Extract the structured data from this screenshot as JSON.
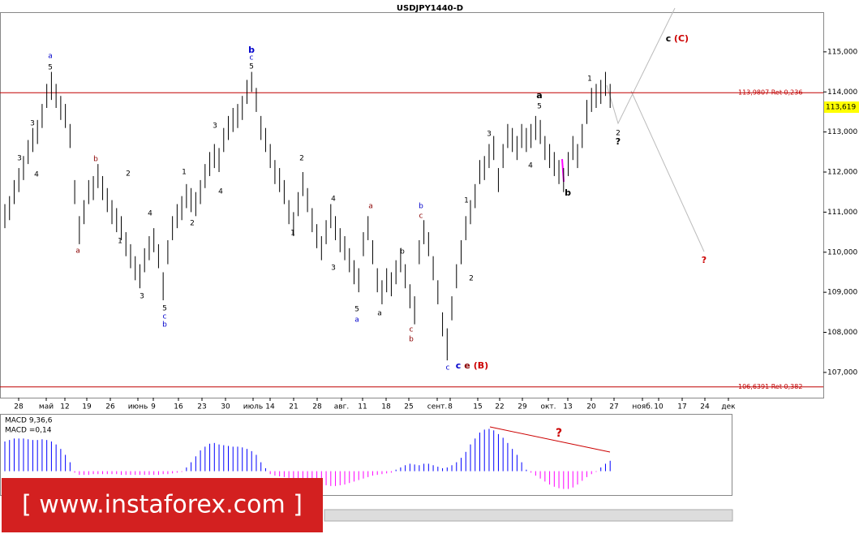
{
  "chart_data": {
    "type": "ohlc",
    "title": "USDJPY1440-D",
    "ylim": [
      106.37,
      115.99
    ],
    "yticks": [
      {
        "value": 107,
        "label": "107,000"
      },
      {
        "value": 108,
        "label": "108,000"
      },
      {
        "value": 109,
        "label": "109,000"
      },
      {
        "value": 110,
        "label": "110,000"
      },
      {
        "value": 111,
        "label": "111,000"
      },
      {
        "value": 112,
        "label": "112,000"
      },
      {
        "value": 113,
        "label": "113,000"
      },
      {
        "value": 114,
        "label": "114,000"
      },
      {
        "value": 115,
        "label": "115,000"
      }
    ],
    "x_labels": [
      "28",
      "май",
      "12",
      "19",
      "26",
      "июнь",
      "9",
      "16",
      "23",
      "30",
      "июль",
      "14",
      "21",
      "28",
      "авг.",
      "11",
      "18",
      "25",
      "сент.",
      "8",
      "15",
      "22",
      "29",
      "окт.",
      "13",
      "20",
      "27",
      "нояб.",
      "10",
      "17",
      "24",
      "дек"
    ],
    "bar_color": "#000000",
    "high": [
      111.2,
      111.4,
      111.8,
      112.1,
      112.4,
      112.8,
      113.1,
      113.3,
      113.7,
      114.2,
      114.5,
      114.2,
      113.9,
      113.7,
      113.2,
      111.8,
      110.9,
      111.3,
      111.8,
      111.9,
      112.2,
      111.9,
      111.6,
      111.3,
      111.1,
      110.9,
      110.5,
      110.2,
      109.9,
      109.7,
      110.1,
      110.4,
      110.6,
      110.2,
      109.5,
      110.3,
      110.9,
      111.2,
      111.4,
      111.7,
      111.6,
      111.5,
      111.8,
      112.2,
      112.5,
      112.7,
      112.6,
      113.1,
      113.4,
      113.6,
      113.7,
      113.9,
      114.3,
      114.5,
      114.1,
      113.4,
      113.1,
      112.7,
      112.3,
      112.1,
      111.8,
      111.3,
      111.0,
      111.5,
      112.0,
      111.6,
      111.1,
      110.7,
      110.4,
      110.8,
      111.2,
      110.9,
      110.6,
      110.4,
      110.1,
      109.8,
      109.6,
      110.5,
      110.9,
      110.3,
      109.6,
      109.3,
      109.6,
      109.5,
      109.8,
      110.1,
      109.7,
      109.2,
      108.9,
      110.3,
      110.8,
      110.5,
      109.9,
      109.3,
      108.5,
      108.1,
      108.9,
      109.7,
      110.3,
      110.9,
      111.3,
      111.7,
      112.3,
      112.4,
      112.7,
      112.9,
      112.1,
      112.7,
      113.2,
      113.1,
      112.9,
      113.2,
      113.1,
      113.2,
      113.4,
      113.3,
      112.9,
      112.7,
      112.5,
      112.3,
      112.1,
      112.5,
      112.9,
      112.7,
      113.2,
      113.8,
      114.1,
      114.2,
      114.3,
      114.5,
      114.2
    ],
    "low": [
      110.6,
      110.8,
      111.2,
      111.5,
      111.8,
      112.2,
      112.5,
      112.7,
      113.1,
      113.6,
      113.8,
      113.6,
      113.3,
      113.1,
      112.6,
      111.2,
      110.2,
      110.7,
      111.2,
      111.3,
      111.6,
      111.3,
      111.0,
      110.7,
      110.5,
      110.3,
      109.9,
      109.6,
      109.3,
      109.1,
      109.5,
      109.8,
      110.0,
      109.6,
      108.8,
      109.7,
      110.3,
      110.6,
      110.8,
      111.1,
      111.0,
      110.9,
      111.2,
      111.6,
      111.9,
      112.1,
      112.0,
      112.5,
      112.8,
      113.0,
      113.1,
      113.3,
      113.7,
      114.0,
      113.5,
      112.8,
      112.5,
      112.1,
      111.7,
      111.5,
      111.2,
      110.7,
      110.4,
      110.9,
      111.4,
      111.0,
      110.5,
      110.1,
      109.8,
      110.2,
      110.6,
      110.3,
      110.0,
      109.8,
      109.5,
      109.2,
      109.0,
      109.9,
      110.3,
      109.7,
      109.0,
      108.7,
      109.0,
      108.9,
      109.2,
      109.5,
      109.1,
      108.6,
      108.2,
      109.7,
      110.2,
      109.9,
      109.3,
      108.7,
      107.9,
      107.3,
      108.3,
      109.1,
      109.7,
      110.3,
      110.7,
      111.1,
      111.7,
      111.8,
      112.1,
      112.3,
      111.5,
      112.1,
      112.6,
      112.5,
      112.3,
      112.6,
      112.5,
      112.6,
      112.8,
      112.7,
      112.3,
      112.1,
      111.9,
      111.7,
      111.5,
      111.9,
      112.3,
      112.1,
      112.6,
      113.2,
      113.5,
      113.6,
      113.7,
      113.9,
      113.6
    ],
    "levels": [
      {
        "value": 113.9807,
        "label": "113,9807 Ret 0,236",
        "color": "#c00000"
      },
      {
        "value": 106.6391,
        "label": "106,6391 Ret 0,382",
        "color": "#c00000"
      }
    ],
    "current_price": {
      "value": 113.619,
      "label": "113,619",
      "color": "#ffff00"
    },
    "annotations": [
      {
        "text": "a",
        "color": "#0000cc"
      },
      {
        "text": "5",
        "color": "#000000"
      },
      {
        "text": "3",
        "color": "#000000"
      },
      {
        "text": "4",
        "color": "#000000"
      },
      {
        "text": "3",
        "color": "#000000"
      },
      {
        "text": "a",
        "color": "#8b0000"
      },
      {
        "text": "b",
        "color": "#8b0000"
      },
      {
        "text": "2",
        "color": "#000000"
      },
      {
        "text": "1",
        "color": "#000000"
      },
      {
        "text": "4",
        "color": "#000000"
      },
      {
        "text": "3",
        "color": "#000000"
      },
      {
        "text": "1",
        "color": "#000000"
      },
      {
        "text": "2",
        "color": "#000000"
      },
      {
        "text": "4",
        "color": "#000000"
      },
      {
        "text": "3",
        "color": "#000000"
      },
      {
        "text": "5",
        "color": "#000000"
      },
      {
        "text": "c",
        "color": "#0000cc"
      },
      {
        "text": "b",
        "color": "#0000cc"
      },
      {
        "text": "b",
        "color": "#0000cc",
        "bold": true
      },
      {
        "text": "c",
        "color": "#0000cc"
      },
      {
        "text": "5",
        "color": "#000000"
      },
      {
        "text": "2",
        "color": "#000000"
      },
      {
        "text": "1",
        "color": "#000000"
      },
      {
        "text": "4",
        "color": "#000000"
      },
      {
        "text": "3",
        "color": "#000000"
      },
      {
        "text": "a",
        "color": "#8b0000"
      },
      {
        "text": "5",
        "color": "#000000"
      },
      {
        "text": "a",
        "color": "#0000cc"
      },
      {
        "text": "a",
        "color": "#000000"
      },
      {
        "text": "b",
        "color": "#000000"
      },
      {
        "text": "c",
        "color": "#8b0000"
      },
      {
        "text": "b",
        "color": "#8b0000"
      },
      {
        "text": "b",
        "color": "#0000cc"
      },
      {
        "text": "c",
        "color": "#8b0000"
      },
      {
        "text": "1",
        "color": "#000000"
      },
      {
        "text": "2",
        "color": "#000000"
      },
      {
        "text": "3",
        "color": "#000000"
      },
      {
        "text": "4",
        "color": "#000000"
      },
      {
        "text": "a",
        "color": "#000000",
        "bold": true
      },
      {
        "text": "5",
        "color": "#000000"
      },
      {
        "text": "b",
        "color": "#000000",
        "bold": true
      },
      {
        "text": "1",
        "color": "#000000"
      },
      {
        "text": "2",
        "color": "#000000"
      },
      {
        "text": "?",
        "color": "#000000",
        "bold": true
      },
      {
        "text": "c",
        "color": "#0000cc"
      },
      {
        "text": "c",
        "color": "#0000cc",
        "bold": true
      },
      {
        "text": "e",
        "color": "#8b0000",
        "bold": true
      },
      {
        "text": "(B)",
        "color": "#cc0000",
        "bold": true
      },
      {
        "text": "c",
        "color": "#000000",
        "bold": true
      },
      {
        "text": "(C)",
        "color": "#cc0000",
        "bold": true
      },
      {
        "text": "?",
        "color": "#cc0000",
        "bold": true
      },
      {
        "text": "?",
        "color": "#cc0000",
        "bold": true
      }
    ],
    "macd": {
      "label": "MACD 9,36,6",
      "value_label": "MACD =0,14",
      "ylim": [
        -0.3,
        0.75
      ],
      "pos_color": "#0000ff",
      "neg_color": "#ff00ff",
      "values": [
        0.4,
        0.42,
        0.44,
        0.44,
        0.44,
        0.43,
        0.42,
        0.42,
        0.43,
        0.42,
        0.4,
        0.36,
        0.3,
        0.22,
        0.12,
        -0.02,
        -0.05,
        -0.05,
        -0.05,
        -0.04,
        -0.04,
        -0.04,
        -0.04,
        -0.04,
        -0.04,
        -0.05,
        -0.05,
        -0.05,
        -0.05,
        -0.05,
        -0.05,
        -0.05,
        -0.05,
        -0.05,
        -0.04,
        -0.04,
        -0.03,
        -0.02,
        -0.01,
        0.05,
        0.12,
        0.2,
        0.28,
        0.33,
        0.37,
        0.38,
        0.36,
        0.35,
        0.34,
        0.33,
        0.33,
        0.32,
        0.3,
        0.27,
        0.22,
        0.12,
        0.04,
        -0.04,
        -0.06,
        -0.07,
        -0.08,
        -0.09,
        -0.1,
        -0.1,
        -0.11,
        -0.12,
        -0.14,
        -0.16,
        -0.18,
        -0.19,
        -0.2,
        -0.2,
        -0.19,
        -0.18,
        -0.16,
        -0.14,
        -0.12,
        -0.1,
        -0.08,
        -0.06,
        -0.05,
        -0.04,
        -0.03,
        -0.02,
        0.02,
        0.05,
        0.08,
        0.1,
        0.09,
        0.08,
        0.1,
        0.1,
        0.08,
        0.06,
        0.04,
        0.05,
        0.08,
        0.12,
        0.18,
        0.26,
        0.36,
        0.44,
        0.52,
        0.56,
        0.57,
        0.55,
        0.5,
        0.45,
        0.38,
        0.3,
        0.22,
        0.12,
        0.02,
        -0.02,
        -0.06,
        -0.1,
        -0.14,
        -0.18,
        -0.21,
        -0.23,
        -0.24,
        -0.24,
        -0.22,
        -0.18,
        -0.13,
        -0.08,
        -0.04,
        -0.01,
        0.05,
        0.1,
        0.14
      ]
    },
    "logo": "[ www.instaforex.com ]"
  }
}
